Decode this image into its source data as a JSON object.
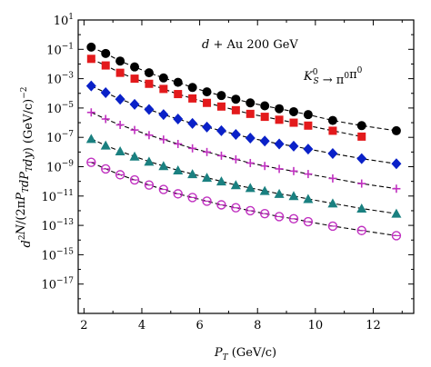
{
  "chart_data": {
    "type": "scatter",
    "annotations": {
      "system": "d + Au 200 GeV",
      "process": "K⁰_S → π⁰π⁰"
    },
    "xlabel": {
      "var": "P",
      "sub": "T",
      "unit": " (GeV/c)"
    },
    "ylabel": "d²N/(2πP_T dP_T dy) (GeV/c)⁻²",
    "xlim": [
      1.8,
      13.4
    ],
    "ylim_log10": [
      -19,
      1
    ],
    "x_ticks": [
      2,
      4,
      6,
      8,
      10,
      12
    ],
    "x_tick_labels": [
      "2",
      "4",
      "6",
      "8",
      "10",
      "12"
    ],
    "y_tick_labels": [
      {
        "exp": 1,
        "label": "10",
        "sup": "1"
      },
      {
        "exp": -1,
        "label": "10",
        "sup": "−1"
      },
      {
        "exp": -3,
        "label": "10",
        "sup": "−3"
      },
      {
        "exp": -5,
        "label": "10",
        "sup": "−5"
      },
      {
        "exp": -7,
        "label": "10",
        "sup": "−7"
      },
      {
        "exp": -9,
        "label": "10",
        "sup": "−9"
      },
      {
        "exp": -11,
        "label": "10",
        "sup": "−11"
      },
      {
        "exp": -13,
        "label": "10",
        "sup": "−13"
      },
      {
        "exp": -15,
        "label": "10",
        "sup": "−15"
      },
      {
        "exp": -17,
        "label": "10",
        "sup": "−17"
      }
    ],
    "x": [
      2.25,
      2.75,
      3.25,
      3.75,
      4.25,
      4.75,
      5.25,
      5.75,
      6.25,
      6.75,
      7.25,
      7.75,
      8.25,
      8.75,
      9.25,
      9.75,
      10.6,
      11.6,
      12.8
    ],
    "fits": true,
    "series": [
      {
        "marker": "circle-filled",
        "color": "#000000",
        "log10_values": [
          -0.85,
          -1.28,
          -1.8,
          -2.2,
          -2.6,
          -2.95,
          -3.25,
          -3.6,
          -3.9,
          -4.15,
          -4.4,
          -4.65,
          -4.85,
          -5.05,
          -5.25,
          -5.45,
          -5.85,
          -6.2,
          -6.55
        ]
      },
      {
        "marker": "square-filled",
        "color": "#e31a1c",
        "log10_values": [
          -1.65,
          -2.1,
          -2.6,
          -3.0,
          -3.35,
          -3.7,
          -4.05,
          -4.35,
          -4.65,
          -4.9,
          -5.15,
          -5.4,
          -5.6,
          -5.8,
          -6.0,
          -6.2,
          -6.55,
          -6.95,
          null
        ]
      },
      {
        "marker": "diamond-filled",
        "color": "#0a21c8",
        "log10_values": [
          -3.5,
          -3.95,
          -4.4,
          -4.75,
          -5.1,
          -5.45,
          -5.75,
          -6.05,
          -6.3,
          -6.55,
          -6.8,
          -7.05,
          -7.25,
          -7.45,
          -7.6,
          -7.8,
          -8.1,
          -8.45,
          -8.8
        ]
      },
      {
        "marker": "plus",
        "color": "#c030c0",
        "log10_values": [
          -5.3,
          -5.75,
          -6.15,
          -6.5,
          -6.85,
          -7.15,
          -7.45,
          -7.75,
          -8.0,
          -8.25,
          -8.5,
          -8.75,
          -8.95,
          -9.15,
          -9.3,
          -9.5,
          -9.8,
          -10.15,
          -10.5
        ]
      },
      {
        "marker": "triangle-filled",
        "color": "#1a8080",
        "log10_values": [
          -7.1,
          -7.55,
          -7.95,
          -8.3,
          -8.65,
          -8.95,
          -9.25,
          -9.5,
          -9.75,
          -10.0,
          -10.25,
          -10.45,
          -10.65,
          -10.85,
          -11.0,
          -11.2,
          -11.5,
          -11.85,
          -12.2
        ]
      },
      {
        "marker": "circle-open-bar",
        "color": "#c030c0",
        "log10_values": [
          -8.7,
          -9.15,
          -9.55,
          -9.9,
          -10.25,
          -10.55,
          -10.85,
          -11.1,
          -11.35,
          -11.6,
          -11.8,
          -12.0,
          -12.2,
          -12.4,
          -12.55,
          -12.75,
          -13.05,
          -13.35,
          -13.7
        ]
      }
    ]
  }
}
